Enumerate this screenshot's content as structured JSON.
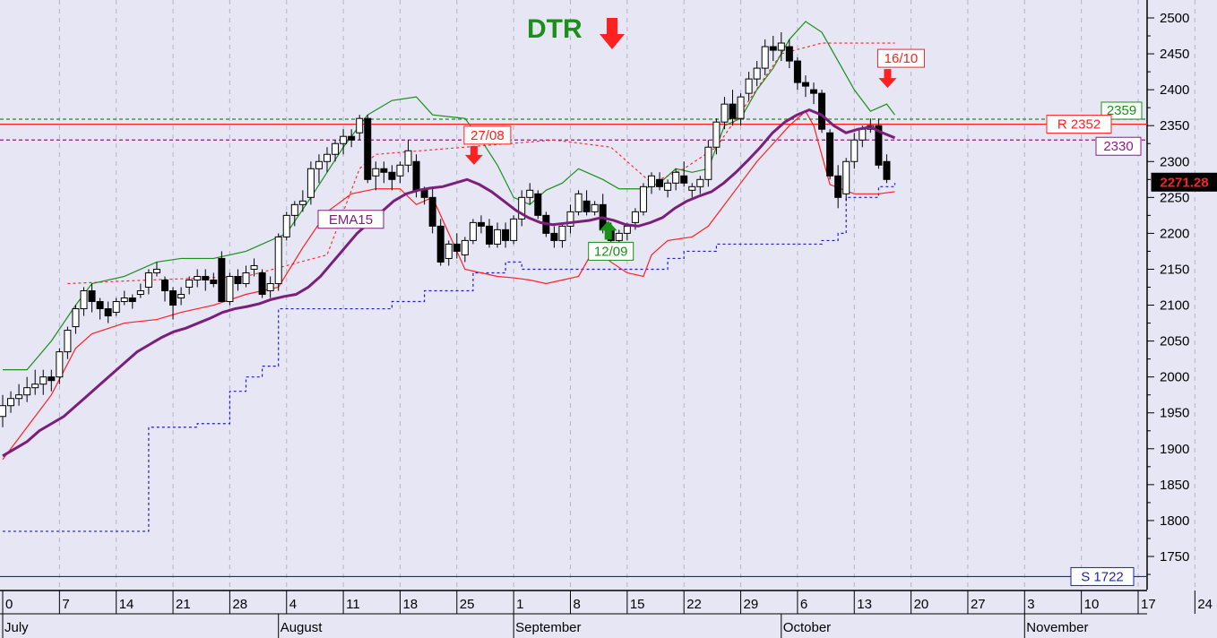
{
  "chart_data": {
    "type": "candlestick",
    "title": "DTR",
    "y_ticks": [
      2500,
      2450,
      2400,
      2350,
      2300,
      2250,
      2200,
      2150,
      2100,
      2050,
      2000,
      1950,
      1900,
      1850,
      1800,
      1750
    ],
    "ylim": [
      1706,
      2520
    ],
    "x_ticks": [
      {
        "day": 0,
        "label": "0"
      },
      {
        "day": 7,
        "label": "7"
      },
      {
        "day": 14,
        "label": "14"
      },
      {
        "day": 21,
        "label": "21"
      },
      {
        "day": 28,
        "label": "28"
      },
      {
        "day": 35,
        "label": "4"
      },
      {
        "day": 42,
        "label": "11"
      },
      {
        "day": 49,
        "label": "18"
      },
      {
        "day": 56,
        "label": "25"
      },
      {
        "day": 63,
        "label": "1"
      },
      {
        "day": 70,
        "label": "8"
      },
      {
        "day": 77,
        "label": "15"
      },
      {
        "day": 84,
        "label": "22"
      },
      {
        "day": 91,
        "label": "29"
      },
      {
        "day": 98,
        "label": "6"
      },
      {
        "day": 105,
        "label": "13"
      },
      {
        "day": 112,
        "label": "20"
      },
      {
        "day": 119,
        "label": "27"
      },
      {
        "day": 126,
        "label": "3"
      },
      {
        "day": 133,
        "label": "10"
      },
      {
        "day": 140,
        "label": "17"
      },
      {
        "day": 147,
        "label": "24"
      }
    ],
    "months": [
      {
        "day": 0,
        "label": "July"
      },
      {
        "day": 34,
        "label": "August"
      },
      {
        "day": 63,
        "label": "September"
      },
      {
        "day": 96,
        "label": "October"
      },
      {
        "day": 126,
        "label": "November"
      }
    ],
    "last_price": "2271.28",
    "levels": [
      {
        "label": "2359",
        "value": 2359,
        "color": "#1a8f1a",
        "style": "dashed"
      },
      {
        "label": "R 2352",
        "value": 2352,
        "color": "#ff2020",
        "style": "solid"
      },
      {
        "label": "2330",
        "value": 2330,
        "color": "#8b1a8b",
        "style": "dashed"
      },
      {
        "label": "S 1722",
        "value": 1722,
        "color": "#1e1ec8",
        "style": "solid"
      }
    ],
    "signals": [
      {
        "label": "27/08",
        "day": 58,
        "value": 2318,
        "direction": "down",
        "color": "#ff2020"
      },
      {
        "label": "12/09",
        "day": 74,
        "value": 2195,
        "direction": "up",
        "color": "#1a8f1a"
      },
      {
        "label": "16/10",
        "day": 109,
        "value": 2425,
        "direction": "down",
        "color": "#ff2020"
      }
    ],
    "ema_label": "EMA15",
    "candles": [
      [
        0,
        1945,
        1975,
        1930,
        1960
      ],
      [
        1,
        1960,
        1980,
        1950,
        1970
      ],
      [
        2,
        1970,
        1990,
        1960,
        1975
      ],
      [
        3,
        1975,
        2000,
        1965,
        1985
      ],
      [
        4,
        1985,
        2010,
        1975,
        1990
      ],
      [
        5,
        1990,
        2010,
        1975,
        2000
      ],
      [
        6,
        2000,
        2010,
        1980,
        1995
      ],
      [
        7,
        2000,
        2040,
        1990,
        2035
      ],
      [
        8,
        2035,
        2070,
        2025,
        2065
      ],
      [
        9,
        2070,
        2100,
        2060,
        2095
      ],
      [
        10,
        2095,
        2125,
        2085,
        2120
      ],
      [
        11,
        2120,
        2130,
        2090,
        2105
      ],
      [
        12,
        2105,
        2110,
        2080,
        2095
      ],
      [
        13,
        2095,
        2105,
        2075,
        2085
      ],
      [
        14,
        2090,
        2110,
        2085,
        2105
      ],
      [
        15,
        2105,
        2120,
        2100,
        2110
      ],
      [
        16,
        2110,
        2115,
        2095,
        2105
      ],
      [
        17,
        2115,
        2130,
        2110,
        2120
      ],
      [
        18,
        2125,
        2150,
        2115,
        2145
      ],
      [
        19,
        2145,
        2160,
        2140,
        2150
      ],
      [
        20,
        2135,
        2140,
        2105,
        2120
      ],
      [
        21,
        2120,
        2125,
        2080,
        2100
      ],
      [
        22,
        2110,
        2125,
        2100,
        2115
      ],
      [
        23,
        2125,
        2140,
        2115,
        2135
      ],
      [
        24,
        2135,
        2150,
        2125,
        2140
      ],
      [
        25,
        2140,
        2150,
        2120,
        2135
      ],
      [
        26,
        2135,
        2145,
        2125,
        2130
      ],
      [
        27,
        2165,
        2175,
        2105,
        2105
      ],
      [
        28,
        2105,
        2145,
        2100,
        2140
      ],
      [
        29,
        2140,
        2150,
        2120,
        2130
      ],
      [
        30,
        2130,
        2155,
        2125,
        2145
      ],
      [
        31,
        2150,
        2165,
        2140,
        2155
      ],
      [
        32,
        2145,
        2150,
        2110,
        2115
      ],
      [
        33,
        2120,
        2140,
        2110,
        2130
      ],
      [
        34,
        2130,
        2200,
        2120,
        2195
      ],
      [
        35,
        2195,
        2230,
        2190,
        2225
      ],
      [
        36,
        2225,
        2245,
        2210,
        2240
      ],
      [
        37,
        2240,
        2260,
        2230,
        2245
      ],
      [
        38,
        2250,
        2300,
        2240,
        2290
      ],
      [
        39,
        2290,
        2310,
        2270,
        2300
      ],
      [
        40,
        2300,
        2320,
        2285,
        2310
      ],
      [
        41,
        2310,
        2330,
        2300,
        2325
      ],
      [
        42,
        2325,
        2345,
        2310,
        2335
      ],
      [
        43,
        2335,
        2345,
        2320,
        2330
      ],
      [
        44,
        2340,
        2365,
        2330,
        2360
      ],
      [
        45,
        2360,
        2365,
        2270,
        2275
      ],
      [
        46,
        2280,
        2300,
        2260,
        2290
      ],
      [
        47,
        2290,
        2300,
        2270,
        2285
      ],
      [
        48,
        2285,
        2295,
        2260,
        2275
      ],
      [
        49,
        2280,
        2300,
        2270,
        2295
      ],
      [
        50,
        2295,
        2330,
        2285,
        2315
      ],
      [
        51,
        2300,
        2310,
        2250,
        2260
      ],
      [
        52,
        2260,
        2265,
        2240,
        2250
      ],
      [
        53,
        2250,
        2265,
        2200,
        2210
      ],
      [
        54,
        2210,
        2220,
        2155,
        2160
      ],
      [
        55,
        2165,
        2190,
        2155,
        2185
      ],
      [
        56,
        2185,
        2200,
        2165,
        2175
      ],
      [
        57,
        2170,
        2195,
        2160,
        2190
      ],
      [
        58,
        2190,
        2220,
        2185,
        2215
      ],
      [
        59,
        2215,
        2225,
        2200,
        2210
      ],
      [
        60,
        2210,
        2220,
        2180,
        2185
      ],
      [
        61,
        2185,
        2215,
        2180,
        2205
      ],
      [
        62,
        2205,
        2215,
        2180,
        2190
      ],
      [
        63,
        2190,
        2225,
        2185,
        2220
      ],
      [
        64,
        2220,
        2260,
        2210,
        2250
      ],
      [
        65,
        2250,
        2270,
        2240,
        2260
      ],
      [
        66,
        2255,
        2260,
        2220,
        2225
      ],
      [
        67,
        2225,
        2230,
        2195,
        2200
      ],
      [
        68,
        2200,
        2210,
        2180,
        2190
      ],
      [
        69,
        2190,
        2215,
        2180,
        2210
      ],
      [
        70,
        2210,
        2240,
        2200,
        2230
      ],
      [
        71,
        2230,
        2260,
        2225,
        2255
      ],
      [
        72,
        2245,
        2260,
        2225,
        2230
      ],
      [
        73,
        2230,
        2245,
        2225,
        2240
      ],
      [
        74,
        2240,
        2255,
        2200,
        2205
      ],
      [
        75,
        2205,
        2215,
        2180,
        2190
      ],
      [
        76,
        2190,
        2205,
        2170,
        2200
      ],
      [
        77,
        2200,
        2215,
        2190,
        2210
      ],
      [
        78,
        2215,
        2235,
        2205,
        2230
      ],
      [
        79,
        2230,
        2270,
        2225,
        2265
      ],
      [
        80,
        2265,
        2285,
        2255,
        2280
      ],
      [
        81,
        2275,
        2285,
        2260,
        2265
      ],
      [
        82,
        2260,
        2275,
        2250,
        2270
      ],
      [
        83,
        2270,
        2290,
        2260,
        2285
      ],
      [
        84,
        2280,
        2300,
        2265,
        2270
      ],
      [
        85,
        2260,
        2270,
        2250,
        2265
      ],
      [
        86,
        2265,
        2280,
        2255,
        2275
      ],
      [
        87,
        2275,
        2330,
        2265,
        2320
      ],
      [
        88,
        2320,
        2360,
        2310,
        2355
      ],
      [
        89,
        2355,
        2390,
        2345,
        2380
      ],
      [
        90,
        2380,
        2400,
        2350,
        2360
      ],
      [
        91,
        2360,
        2395,
        2350,
        2390
      ],
      [
        92,
        2395,
        2425,
        2385,
        2415
      ],
      [
        93,
        2415,
        2440,
        2405,
        2430
      ],
      [
        94,
        2430,
        2470,
        2420,
        2460
      ],
      [
        95,
        2460,
        2475,
        2440,
        2455
      ],
      [
        96,
        2455,
        2480,
        2440,
        2465
      ],
      [
        97,
        2460,
        2470,
        2430,
        2440
      ],
      [
        98,
        2440,
        2445,
        2400,
        2410
      ],
      [
        99,
        2410,
        2420,
        2390,
        2405
      ],
      [
        100,
        2400,
        2410,
        2380,
        2395
      ],
      [
        101,
        2395,
        2400,
        2340,
        2345
      ],
      [
        102,
        2340,
        2345,
        2275,
        2280
      ],
      [
        103,
        2280,
        2295,
        2235,
        2250
      ],
      [
        104,
        2255,
        2305,
        2245,
        2300
      ],
      [
        105,
        2300,
        2340,
        2290,
        2330
      ],
      [
        106,
        2330,
        2350,
        2320,
        2345
      ],
      [
        107,
        2345,
        2360,
        2340,
        2350
      ],
      [
        108,
        2350,
        2360,
        2290,
        2295
      ],
      [
        109,
        2300,
        2310,
        2270,
        2275
      ]
    ],
    "ema15": [
      1890,
      1900,
      1910,
      1925,
      1935,
      1945,
      1960,
      1975,
      1990,
      2005,
      2020,
      2035,
      2045,
      2055,
      2063,
      2068,
      2075,
      2082,
      2090,
      2095,
      2098,
      2102,
      2108,
      2112,
      2115,
      2125,
      2140,
      2160,
      2180,
      2200,
      2215,
      2230,
      2245,
      2255,
      2260,
      2263,
      2265,
      2270,
      2275,
      2268,
      2258,
      2245,
      2232,
      2222,
      2215,
      2212,
      2214,
      2216,
      2218,
      2222,
      2218,
      2212,
      2210,
      2215,
      2222,
      2235,
      2245,
      2252,
      2258,
      2270,
      2285,
      2302,
      2320,
      2340,
      2355,
      2365,
      2372,
      2365,
      2350,
      2340,
      2345,
      2348,
      2340,
      2333
    ],
    "ema15_start": 0,
    "upper_band": [
      [
        0,
        2010
      ],
      [
        3,
        2010
      ],
      [
        6,
        2050
      ],
      [
        9,
        2100
      ],
      [
        11,
        2130
      ],
      [
        15,
        2140
      ],
      [
        19,
        2160
      ],
      [
        22,
        2165
      ],
      [
        26,
        2165
      ],
      [
        30,
        2175
      ],
      [
        35,
        2200
      ],
      [
        38,
        2250
      ],
      [
        42,
        2320
      ],
      [
        45,
        2365
      ],
      [
        48,
        2385
      ],
      [
        51,
        2390
      ],
      [
        53,
        2365
      ],
      [
        57,
        2360
      ],
      [
        59,
        2330
      ],
      [
        61,
        2295
      ],
      [
        63,
        2250
      ],
      [
        65,
        2240
      ],
      [
        67,
        2260
      ],
      [
        69,
        2270
      ],
      [
        71,
        2290
      ],
      [
        74,
        2275
      ],
      [
        76,
        2262
      ],
      [
        79,
        2262
      ],
      [
        81,
        2270
      ],
      [
        83,
        2290
      ],
      [
        85,
        2285
      ],
      [
        87,
        2290
      ],
      [
        89,
        2350
      ],
      [
        91,
        2360
      ],
      [
        93,
        2400
      ],
      [
        95,
        2430
      ],
      [
        97,
        2470
      ],
      [
        99,
        2495
      ],
      [
        101,
        2480
      ],
      [
        103,
        2440
      ],
      [
        105,
        2400
      ],
      [
        107,
        2370
      ],
      [
        109,
        2380
      ],
      [
        110,
        2365
      ]
    ],
    "lower_band": [
      [
        0,
        1885
      ],
      [
        3,
        1930
      ],
      [
        6,
        1975
      ],
      [
        9,
        2040
      ],
      [
        11,
        2060
      ],
      [
        15,
        2075
      ],
      [
        19,
        2080
      ],
      [
        22,
        2090
      ],
      [
        26,
        2100
      ],
      [
        30,
        2115
      ],
      [
        34,
        2125
      ],
      [
        37,
        2180
      ],
      [
        40,
        2230
      ],
      [
        43,
        2255
      ],
      [
        46,
        2262
      ],
      [
        49,
        2262
      ],
      [
        51,
        2240
      ],
      [
        53,
        2250
      ],
      [
        55,
        2200
      ],
      [
        57,
        2150
      ],
      [
        61,
        2140
      ],
      [
        63,
        2138
      ],
      [
        65,
        2135
      ],
      [
        67,
        2130
      ],
      [
        69,
        2135
      ],
      [
        71,
        2140
      ],
      [
        73,
        2180
      ],
      [
        75,
        2160
      ],
      [
        77,
        2145
      ],
      [
        79,
        2140
      ],
      [
        80,
        2170
      ],
      [
        82,
        2190
      ],
      [
        85,
        2195
      ],
      [
        87,
        2210
      ],
      [
        89,
        2240
      ],
      [
        91,
        2270
      ],
      [
        93,
        2300
      ],
      [
        95,
        2325
      ],
      [
        97,
        2350
      ],
      [
        99,
        2370
      ],
      [
        100,
        2350
      ],
      [
        102,
        2268
      ],
      [
        105,
        2255
      ],
      [
        108,
        2255
      ],
      [
        110,
        2258
      ]
    ],
    "stop_dotted_red": [
      [
        8,
        2130
      ],
      [
        18,
        2135
      ],
      [
        30,
        2140
      ],
      [
        40,
        2170
      ],
      [
        44,
        2290
      ],
      [
        46,
        2310
      ],
      [
        68,
        2330
      ],
      [
        75,
        2320
      ],
      [
        80,
        2270
      ],
      [
        84,
        2290
      ],
      [
        88,
        2320
      ],
      [
        92,
        2385
      ],
      [
        96,
        2450
      ],
      [
        101,
        2465
      ],
      [
        110,
        2465
      ]
    ],
    "stop_dotted_blue": [
      [
        0,
        1785
      ],
      [
        15,
        1785
      ],
      [
        18,
        1930
      ],
      [
        24,
        1935
      ],
      [
        28,
        1980
      ],
      [
        30,
        2000
      ],
      [
        32,
        2015
      ],
      [
        34,
        2095
      ],
      [
        44,
        2095
      ],
      [
        48,
        2105
      ],
      [
        52,
        2120
      ],
      [
        58,
        2145
      ],
      [
        62,
        2160
      ],
      [
        64,
        2150
      ],
      [
        80,
        2150
      ],
      [
        82,
        2165
      ],
      [
        84,
        2175
      ],
      [
        88,
        2185
      ],
      [
        101,
        2190
      ],
      [
        103,
        2200
      ],
      [
        104,
        2250
      ],
      [
        108,
        2265
      ],
      [
        110,
        2270
      ]
    ]
  }
}
